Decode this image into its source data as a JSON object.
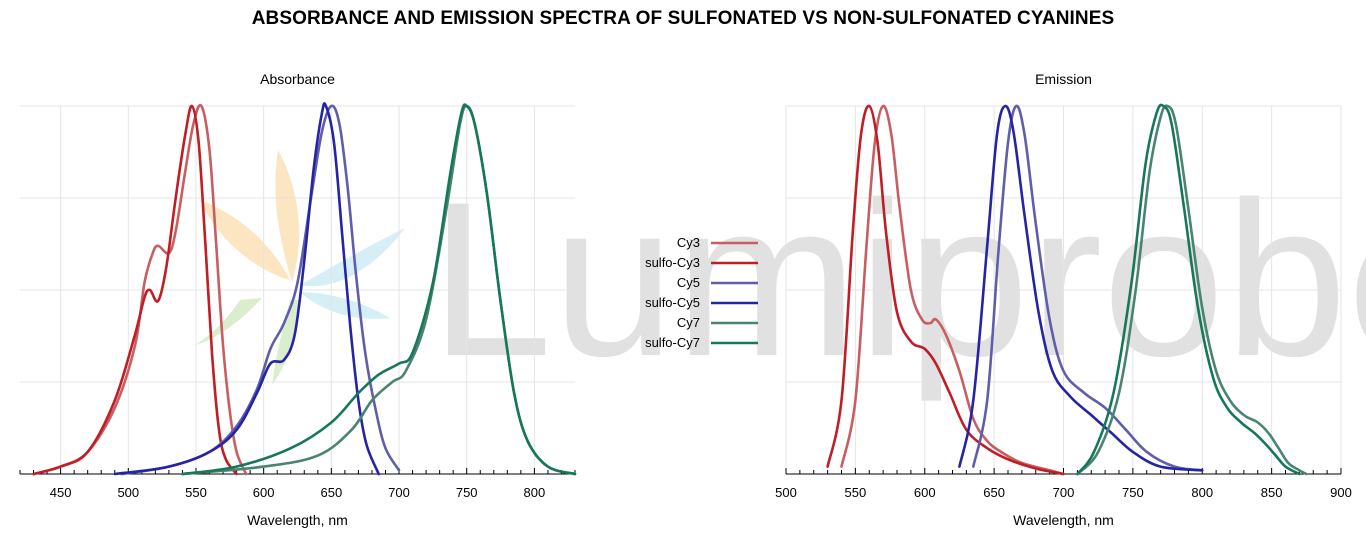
{
  "title": "ABSORBANCE AND EMISSION SPECTRA OF SULFONATED VS NON-SULFONATED CYANINES",
  "watermark": {
    "text": "Lumiprobe"
  },
  "colors": {
    "Cy3": "#c85e62",
    "sulfo-Cy3": "#c01d24",
    "Cy5": "#5e5eaa",
    "sulfo-Cy5": "#2424a4",
    "Cy7": "#4a8470",
    "sulfo-Cy7": "#167858"
  },
  "legend": {
    "placement": "center",
    "entries": [
      "Cy3",
      "sulfo-Cy3",
      "Cy5",
      "sulfo-Cy5",
      "Cy7",
      "sulfo-Cy7"
    ]
  },
  "chart_data": [
    {
      "type": "line",
      "title": "Absorbance",
      "xlabel": "Wavelength, nm",
      "ylabel": "",
      "xlim": [
        420,
        830
      ],
      "ylim": [
        0,
        1
      ],
      "xticks": [
        450,
        500,
        550,
        600,
        650,
        700,
        750,
        800
      ],
      "grid": true,
      "series": [
        {
          "name": "Cy3",
          "points": [
            [
              430,
              0.0
            ],
            [
              450,
              0.02
            ],
            [
              470,
              0.06
            ],
            [
              490,
              0.18
            ],
            [
              505,
              0.35
            ],
            [
              512,
              0.52
            ],
            [
              518,
              0.6
            ],
            [
              522,
              0.62
            ],
            [
              530,
              0.6
            ],
            [
              535,
              0.66
            ],
            [
              542,
              0.82
            ],
            [
              548,
              0.95
            ],
            [
              554,
              1.0
            ],
            [
              560,
              0.88
            ],
            [
              565,
              0.62
            ],
            [
              570,
              0.35
            ],
            [
              575,
              0.17
            ],
            [
              580,
              0.06
            ],
            [
              587,
              0.0
            ]
          ]
        },
        {
          "name": "sulfo-Cy3",
          "points": [
            [
              430,
              0.0
            ],
            [
              450,
              0.02
            ],
            [
              470,
              0.06
            ],
            [
              490,
              0.2
            ],
            [
              505,
              0.38
            ],
            [
              512,
              0.48
            ],
            [
              516,
              0.5
            ],
            [
              522,
              0.47
            ],
            [
              528,
              0.56
            ],
            [
              535,
              0.75
            ],
            [
              542,
              0.92
            ],
            [
              547,
              1.0
            ],
            [
              552,
              0.9
            ],
            [
              557,
              0.62
            ],
            [
              562,
              0.32
            ],
            [
              567,
              0.12
            ],
            [
              572,
              0.04
            ],
            [
              580,
              0.0
            ]
          ]
        },
        {
          "name": "Cy5",
          "points": [
            [
              495,
              0.0
            ],
            [
              530,
              0.02
            ],
            [
              560,
              0.06
            ],
            [
              580,
              0.13
            ],
            [
              595,
              0.23
            ],
            [
              605,
              0.34
            ],
            [
              615,
              0.41
            ],
            [
              625,
              0.52
            ],
            [
              635,
              0.75
            ],
            [
              643,
              0.93
            ],
            [
              650,
              1.0
            ],
            [
              656,
              0.95
            ],
            [
              662,
              0.78
            ],
            [
              668,
              0.55
            ],
            [
              675,
              0.33
            ],
            [
              683,
              0.17
            ],
            [
              690,
              0.07
            ],
            [
              700,
              0.01
            ]
          ]
        },
        {
          "name": "sulfo-Cy5",
          "points": [
            [
              490,
              0.0
            ],
            [
              530,
              0.02
            ],
            [
              560,
              0.06
            ],
            [
              580,
              0.12
            ],
            [
              595,
              0.22
            ],
            [
              605,
              0.3
            ],
            [
              615,
              0.31
            ],
            [
              623,
              0.38
            ],
            [
              630,
              0.58
            ],
            [
              637,
              0.83
            ],
            [
              643,
              0.98
            ],
            [
              646,
              1.0
            ],
            [
              652,
              0.9
            ],
            [
              658,
              0.65
            ],
            [
              664,
              0.4
            ],
            [
              670,
              0.2
            ],
            [
              676,
              0.08
            ],
            [
              685,
              0.0
            ]
          ]
        },
        {
          "name": "Cy7",
          "points": [
            [
              540,
              0.0
            ],
            [
              600,
              0.02
            ],
            [
              640,
              0.05
            ],
            [
              665,
              0.12
            ],
            [
              680,
              0.2
            ],
            [
              695,
              0.25
            ],
            [
              705,
              0.28
            ],
            [
              720,
              0.42
            ],
            [
              735,
              0.72
            ],
            [
              745,
              0.95
            ],
            [
              750,
              1.0
            ],
            [
              756,
              0.95
            ],
            [
              765,
              0.76
            ],
            [
              775,
              0.47
            ],
            [
              785,
              0.22
            ],
            [
              795,
              0.09
            ],
            [
              810,
              0.02
            ],
            [
              830,
              0.0
            ]
          ]
        },
        {
          "name": "sulfo-Cy7",
          "points": [
            [
              540,
              0.0
            ],
            [
              580,
              0.02
            ],
            [
              620,
              0.07
            ],
            [
              650,
              0.14
            ],
            [
              670,
              0.22
            ],
            [
              685,
              0.27
            ],
            [
              700,
              0.3
            ],
            [
              710,
              0.33
            ],
            [
              725,
              0.52
            ],
            [
              738,
              0.82
            ],
            [
              746,
              0.98
            ],
            [
              750,
              1.0
            ],
            [
              756,
              0.95
            ],
            [
              765,
              0.76
            ],
            [
              775,
              0.47
            ],
            [
              785,
              0.22
            ],
            [
              795,
              0.09
            ],
            [
              810,
              0.02
            ],
            [
              830,
              0.0
            ]
          ]
        }
      ]
    },
    {
      "type": "line",
      "title": "Emission",
      "xlabel": "Wavelength, nm",
      "ylabel": "",
      "xlim": [
        500,
        900
      ],
      "ylim": [
        0,
        1
      ],
      "xticks": [
        500,
        550,
        600,
        650,
        700,
        750,
        800,
        850,
        900
      ],
      "grid": true,
      "series": [
        {
          "name": "Cy3",
          "points": [
            [
              540,
              0.02
            ],
            [
              550,
              0.2
            ],
            [
              558,
              0.62
            ],
            [
              564,
              0.9
            ],
            [
              570,
              1.0
            ],
            [
              576,
              0.92
            ],
            [
              582,
              0.72
            ],
            [
              590,
              0.5
            ],
            [
              598,
              0.42
            ],
            [
              604,
              0.41
            ],
            [
              608,
              0.42
            ],
            [
              615,
              0.38
            ],
            [
              625,
              0.28
            ],
            [
              635,
              0.15
            ],
            [
              645,
              0.09
            ],
            [
              655,
              0.06
            ],
            [
              670,
              0.03
            ],
            [
              690,
              0.01
            ],
            [
              700,
              0.0
            ]
          ]
        },
        {
          "name": "sulfo-Cy3",
          "points": [
            [
              530,
              0.02
            ],
            [
              540,
              0.2
            ],
            [
              548,
              0.65
            ],
            [
              554,
              0.92
            ],
            [
              560,
              1.0
            ],
            [
              566,
              0.9
            ],
            [
              572,
              0.66
            ],
            [
              580,
              0.44
            ],
            [
              590,
              0.36
            ],
            [
              600,
              0.34
            ],
            [
              608,
              0.3
            ],
            [
              618,
              0.22
            ],
            [
              630,
              0.12
            ],
            [
              645,
              0.07
            ],
            [
              660,
              0.04
            ],
            [
              680,
              0.015
            ],
            [
              700,
              0.0
            ]
          ]
        },
        {
          "name": "Cy5",
          "points": [
            [
              635,
              0.02
            ],
            [
              645,
              0.2
            ],
            [
              653,
              0.6
            ],
            [
              660,
              0.9
            ],
            [
              666,
              1.0
            ],
            [
              672,
              0.92
            ],
            [
              680,
              0.68
            ],
            [
              690,
              0.42
            ],
            [
              700,
              0.28
            ],
            [
              715,
              0.22
            ],
            [
              730,
              0.18
            ],
            [
              745,
              0.12
            ],
            [
              760,
              0.06
            ],
            [
              780,
              0.02
            ],
            [
              800,
              0.01
            ]
          ]
        },
        {
          "name": "sulfo-Cy5",
          "points": [
            [
              625,
              0.02
            ],
            [
              635,
              0.2
            ],
            [
              645,
              0.62
            ],
            [
              652,
              0.92
            ],
            [
              658,
              1.0
            ],
            [
              664,
              0.93
            ],
            [
              672,
              0.7
            ],
            [
              682,
              0.44
            ],
            [
              692,
              0.28
            ],
            [
              705,
              0.21
            ],
            [
              720,
              0.16
            ],
            [
              735,
              0.11
            ],
            [
              750,
              0.06
            ],
            [
              770,
              0.02
            ],
            [
              800,
              0.01
            ]
          ]
        },
        {
          "name": "Cy7",
          "points": [
            [
              710,
              0.0
            ],
            [
              725,
              0.06
            ],
            [
              740,
              0.22
            ],
            [
              752,
              0.5
            ],
            [
              762,
              0.82
            ],
            [
              770,
              0.97
            ],
            [
              775,
              1.0
            ],
            [
              781,
              0.95
            ],
            [
              790,
              0.72
            ],
            [
              800,
              0.45
            ],
            [
              810,
              0.28
            ],
            [
              820,
              0.2
            ],
            [
              830,
              0.16
            ],
            [
              840,
              0.14
            ],
            [
              848,
              0.11
            ],
            [
              855,
              0.07
            ],
            [
              862,
              0.03
            ],
            [
              870,
              0.01
            ],
            [
              875,
              0.0
            ]
          ]
        },
        {
          "name": "sulfo-Cy7",
          "points": [
            [
              710,
              0.0
            ],
            [
              722,
              0.06
            ],
            [
              736,
              0.22
            ],
            [
              749,
              0.52
            ],
            [
              759,
              0.84
            ],
            [
              767,
              0.98
            ],
            [
              772,
              1.0
            ],
            [
              778,
              0.95
            ],
            [
              787,
              0.72
            ],
            [
              797,
              0.45
            ],
            [
              808,
              0.26
            ],
            [
              818,
              0.18
            ],
            [
              828,
              0.14
            ],
            [
              838,
              0.11
            ],
            [
              846,
              0.08
            ],
            [
              853,
              0.05
            ],
            [
              860,
              0.02
            ],
            [
              870,
              0.0
            ]
          ]
        }
      ]
    }
  ]
}
